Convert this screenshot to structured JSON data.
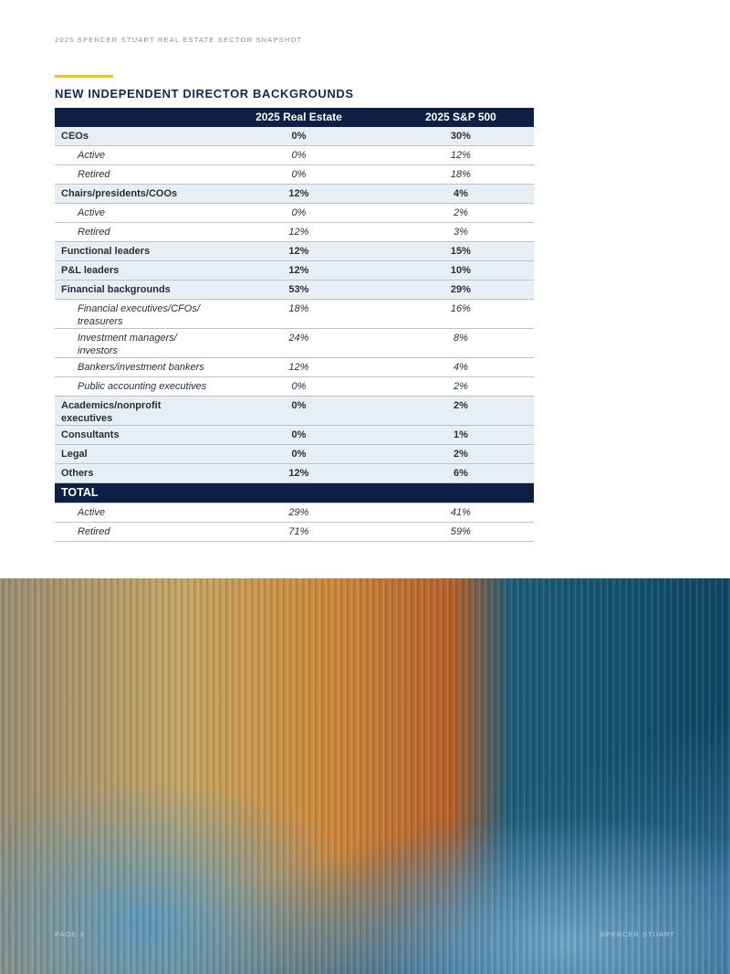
{
  "header": {
    "running_title": "2025 SPENCER STUART REAL ESTATE SECTOR SNAPSHOT"
  },
  "title": "NEW INDEPENDENT DIRECTOR BACKGROUNDS",
  "table": {
    "columns": [
      "2025 Real Estate",
      "2025 S&P 500"
    ],
    "sections": [
      {
        "label": "CEOs",
        "values": [
          "0%",
          "30%"
        ],
        "children": [
          {
            "label": "Active",
            "values": [
              "0%",
              "12%"
            ]
          },
          {
            "label": "Retired",
            "values": [
              "0%",
              "18%"
            ]
          }
        ]
      },
      {
        "label": "Chairs/presidents/COOs",
        "values": [
          "12%",
          "4%"
        ],
        "children": [
          {
            "label": "Active",
            "values": [
              "0%",
              "2%"
            ]
          },
          {
            "label": "Retired",
            "values": [
              "12%",
              "3%"
            ]
          }
        ]
      },
      {
        "label": "Functional leaders",
        "values": [
          "12%",
          "15%"
        ]
      },
      {
        "label": "P&L leaders",
        "values": [
          "12%",
          "10%"
        ]
      },
      {
        "label": "Financial backgrounds",
        "values": [
          "53%",
          "29%"
        ],
        "children": [
          {
            "label": "Financial executives/CFOs/ treasurers",
            "values": [
              "18%",
              "16%"
            ]
          },
          {
            "label": "Investment managers/ investors",
            "values": [
              "24%",
              "8%"
            ]
          },
          {
            "label": "Bankers/investment bankers",
            "values": [
              "12%",
              "4%"
            ]
          },
          {
            "label": "Public accounting executives",
            "values": [
              "0%",
              "2%"
            ]
          }
        ]
      },
      {
        "label": "Academics/nonprofit executives",
        "values": [
          "0%",
          "2%"
        ]
      },
      {
        "label": "Consultants",
        "values": [
          "0%",
          "1%"
        ]
      },
      {
        "label": "Legal",
        "values": [
          "0%",
          "2%"
        ]
      },
      {
        "label": "Others",
        "values": [
          "12%",
          "6%"
        ]
      },
      {
        "label": "TOTAL",
        "children": [
          {
            "label": "Active",
            "values": [
              "29%",
              "41%"
            ]
          },
          {
            "label": "Retired",
            "values": [
              "71%",
              "59%"
            ]
          }
        ]
      }
    ]
  },
  "footer": {
    "page": "PAGE 3",
    "brand": "SPENCER STUART"
  }
}
